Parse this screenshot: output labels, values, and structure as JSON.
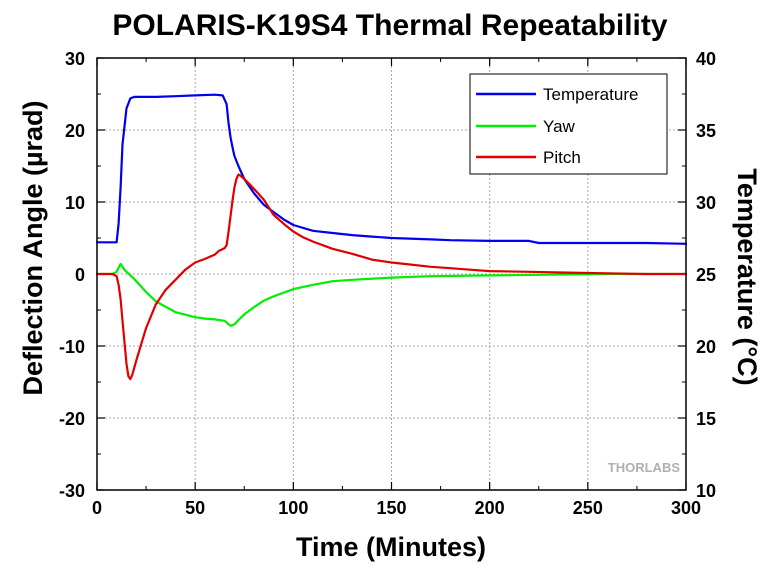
{
  "chart_data": {
    "type": "line",
    "title": "POLARIS-K19S4 Thermal Repeatability",
    "xlabel": "Time (Minutes)",
    "ylabel": "Deflection Angle (µrad)",
    "y2label": "Temperature (°C)",
    "xlim": [
      0,
      300
    ],
    "ylim": [
      -30,
      30
    ],
    "y2lim": [
      10,
      40
    ],
    "x_ticks": [
      "0",
      "50",
      "100",
      "150",
      "200",
      "250",
      "300"
    ],
    "y_ticks": [
      "-30",
      "-20",
      "-10",
      "0",
      "10",
      "20",
      "30"
    ],
    "y2_ticks": [
      "10",
      "15",
      "20",
      "25",
      "30",
      "35",
      "40"
    ],
    "grid": true,
    "legend_position": "top-right",
    "watermark": "THORLABS",
    "series": [
      {
        "name": "Temperature",
        "axis": "right",
        "color": "#0000ee",
        "x": [
          0,
          10,
          11,
          12,
          13,
          15,
          17,
          19,
          20,
          30,
          40,
          50,
          60,
          64,
          66,
          67,
          68,
          69,
          70,
          72,
          75,
          80,
          85,
          90,
          95,
          100,
          110,
          120,
          130,
          140,
          150,
          170,
          180,
          200,
          220,
          225,
          240,
          260,
          280,
          300
        ],
        "values": [
          27.2,
          27.2,
          28.5,
          31.0,
          34.0,
          36.5,
          37.2,
          37.3,
          37.3,
          37.3,
          37.35,
          37.4,
          37.45,
          37.4,
          36.8,
          35.5,
          34.5,
          33.8,
          33.2,
          32.5,
          31.6,
          30.6,
          29.8,
          29.3,
          28.8,
          28.4,
          28.0,
          27.85,
          27.7,
          27.6,
          27.5,
          27.4,
          27.35,
          27.3,
          27.3,
          27.15,
          27.15,
          27.15,
          27.15,
          27.1
        ]
      },
      {
        "name": "Yaw",
        "axis": "left",
        "color": "#00ee00",
        "x": [
          0,
          8,
          10,
          12,
          13,
          14,
          15,
          17,
          19,
          20,
          25,
          30,
          40,
          50,
          55,
          60,
          65,
          68,
          70,
          72,
          75,
          80,
          85,
          90,
          100,
          110,
          120,
          130,
          150,
          170,
          200,
          230,
          260,
          280,
          300
        ],
        "values": [
          0,
          0,
          0.3,
          1.4,
          1.0,
          0.6,
          0.3,
          -0.2,
          -0.7,
          -1.0,
          -2.5,
          -3.8,
          -5.3,
          -6.0,
          -6.2,
          -6.3,
          -6.5,
          -7.2,
          -7.0,
          -6.4,
          -5.6,
          -4.6,
          -3.7,
          -3.1,
          -2.1,
          -1.5,
          -1.0,
          -0.8,
          -0.5,
          -0.3,
          -0.2,
          -0.1,
          0,
          0,
          0
        ]
      },
      {
        "name": "Pitch",
        "axis": "left",
        "color": "#e00000",
        "x": [
          0,
          8,
          10,
          11,
          12,
          13,
          14,
          15,
          16,
          17,
          18,
          20,
          25,
          30,
          35,
          40,
          45,
          50,
          55,
          60,
          62,
          65,
          66,
          67,
          68,
          69,
          70,
          71,
          72,
          73,
          75,
          78,
          80,
          85,
          90,
          95,
          100,
          105,
          110,
          120,
          130,
          140,
          150,
          160,
          170,
          180,
          190,
          200,
          220,
          240,
          260,
          280,
          300
        ],
        "values": [
          0,
          0,
          -0.3,
          -1.5,
          -3.5,
          -6.5,
          -9.5,
          -12.5,
          -14.2,
          -14.6,
          -14.0,
          -12.0,
          -7.5,
          -4.2,
          -2.2,
          -0.8,
          0.6,
          1.6,
          2.1,
          2.7,
          3.2,
          3.6,
          4.0,
          5.8,
          8.0,
          10.2,
          12.0,
          13.2,
          13.8,
          13.7,
          13.2,
          12.4,
          11.8,
          10.3,
          8.2,
          7.0,
          5.9,
          5.1,
          4.5,
          3.5,
          2.8,
          2.0,
          1.6,
          1.3,
          1.0,
          0.8,
          0.6,
          0.4,
          0.3,
          0.2,
          0.1,
          0,
          0
        ]
      }
    ]
  }
}
